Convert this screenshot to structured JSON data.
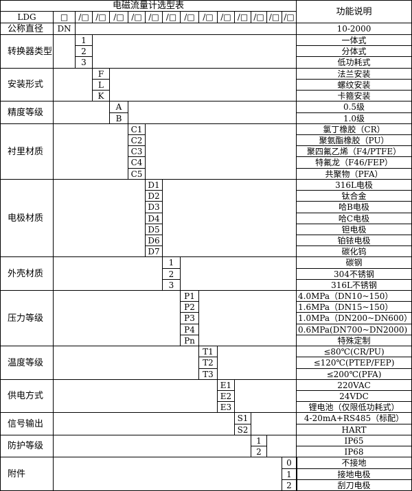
{
  "title": "电磁流量计选型表",
  "function_header": "功能说明",
  "model_prefix": "LDG",
  "first_slot": "□",
  "slot_label": "/□",
  "slot_count": 13,
  "nominal": {
    "label": "公称直径",
    "code": "DN",
    "function": "10-2000"
  },
  "groups": [
    {
      "label": "转换器类型",
      "slot": 0,
      "items": [
        {
          "code": "1",
          "function": "一体式"
        },
        {
          "code": "2",
          "function": "分体式"
        },
        {
          "code": "3",
          "function": "低功耗式"
        }
      ]
    },
    {
      "label": "安装形式",
      "slot": 1,
      "items": [
        {
          "code": "F",
          "function": "法兰安装"
        },
        {
          "code": "L",
          "function": "螺纹安装"
        },
        {
          "code": "K",
          "function": "卡箍安装"
        }
      ]
    },
    {
      "label": "精度等级",
      "slot": 2,
      "items": [
        {
          "code": "A",
          "function": "0.5级"
        },
        {
          "code": "B",
          "function": "1.0级"
        }
      ]
    },
    {
      "label": "衬里材质",
      "slot": 3,
      "items": [
        {
          "code": "C1",
          "function": "氯丁橡胶（CR）"
        },
        {
          "code": "C2",
          "function": "聚氨酯橡胶（PU）"
        },
        {
          "code": "C3",
          "function": "聚四氟乙烯（F4/PTFE）"
        },
        {
          "code": "C4",
          "function": "特氟龙（F46/FEP）"
        },
        {
          "code": "C5",
          "function": "共聚物（PFA）"
        }
      ]
    },
    {
      "label": "电极材质",
      "slot": 4,
      "items": [
        {
          "code": "D1",
          "function": "316L电极"
        },
        {
          "code": "D2",
          "function": "钛合金"
        },
        {
          "code": "D3",
          "function": "哈B电极"
        },
        {
          "code": "D4",
          "function": "哈C电极"
        },
        {
          "code": "D5",
          "function": "钽电极"
        },
        {
          "code": "D6",
          "function": "铂铱电极"
        },
        {
          "code": "D7",
          "function": "碳化钨"
        }
      ]
    },
    {
      "label": "外壳材质",
      "slot": 5,
      "items": [
        {
          "code": "1",
          "function": "碳钢"
        },
        {
          "code": "2",
          "function": "304不锈钢"
        },
        {
          "code": "3",
          "function": "316L不锈钢"
        }
      ]
    },
    {
      "label": "压力等级",
      "slot": 6,
      "items": [
        {
          "code": "P1",
          "function": "4.0MPa（DN10~150）",
          "align": "left"
        },
        {
          "code": "P2",
          "function": "1.6MPa（DN15~150）",
          "align": "left"
        },
        {
          "code": "P3",
          "function": "1.0MPa（DN200~DN600）",
          "align": "left"
        },
        {
          "code": "P4",
          "function": "0.6MPa(DN700~DN2000)",
          "align": "left"
        },
        {
          "code": "Pn",
          "function": "特殊定制"
        }
      ]
    },
    {
      "label": "温度等级",
      "slot": 7,
      "items": [
        {
          "code": "T1",
          "function": "≤80℃(CR/PU)"
        },
        {
          "code": "T2",
          "function": "≤120℃(PTEP/FEP)"
        },
        {
          "code": "T3",
          "function": "≤200℃(PFA)"
        }
      ]
    },
    {
      "label": "供电方式",
      "slot": 8,
      "items": [
        {
          "code": "E1",
          "function": "220VAC"
        },
        {
          "code": "E2",
          "function": "24VDC"
        },
        {
          "code": "E3",
          "function": "锂电池（仅限低功耗式）"
        }
      ]
    },
    {
      "label": "信号输出",
      "slot": 9,
      "items": [
        {
          "code": "S1",
          "function": "4-20mA+RS485（标配）"
        },
        {
          "code": "S2",
          "function": "HART"
        }
      ]
    },
    {
      "label": "防护等级",
      "slot": 10,
      "items": [
        {
          "code": "1",
          "function": "IP65"
        },
        {
          "code": "2",
          "function": "IP68"
        }
      ]
    },
    {
      "label": "附件",
      "slot": 12,
      "items": [
        {
          "code": "0",
          "function": "不接地"
        },
        {
          "code": "1",
          "function": "接地电极"
        },
        {
          "code": "2",
          "function": "刮刀电极"
        }
      ]
    }
  ]
}
